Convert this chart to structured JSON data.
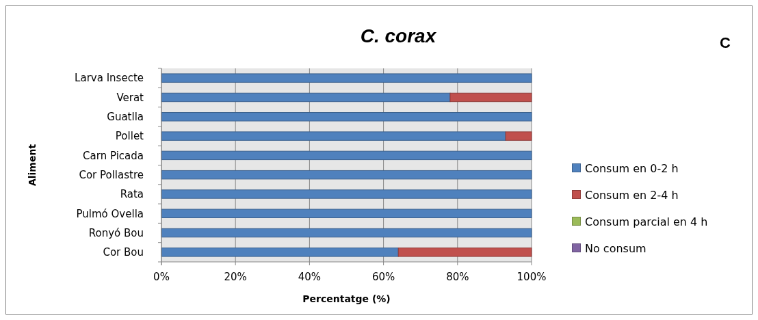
{
  "chart_data": {
    "type": "bar",
    "orientation": "horizontal",
    "stacked": true,
    "title": "C. corax",
    "xlabel": "Percentatge (%)",
    "ylabel": "Aliment",
    "annotations": [
      "C"
    ],
    "categories": [
      "Larva Insecte",
      "Verat",
      "Guatlla",
      "Pollet",
      "Carn Picada",
      "Cor Pollastre",
      "Rata",
      "Pulmó Ovella",
      "Ronyó Bou",
      "Cor Bou"
    ],
    "series": [
      {
        "name": "Consum en 0-2 h",
        "color": "#4f81bd",
        "values": [
          100,
          78,
          100,
          93,
          100,
          100,
          100,
          100,
          100,
          64
        ]
      },
      {
        "name": "Consum en 2-4 h",
        "color": "#c0504d",
        "values": [
          0,
          22,
          0,
          7,
          0,
          0,
          0,
          0,
          0,
          36
        ]
      },
      {
        "name": "Consum parcial en 4 h",
        "color": "#9bbb59",
        "values": [
          0,
          0,
          0,
          0,
          0,
          0,
          0,
          0,
          0,
          0
        ]
      },
      {
        "name": "No consum",
        "color": "#8064a2",
        "values": [
          0,
          0,
          0,
          0,
          0,
          0,
          0,
          0,
          0,
          0
        ]
      }
    ],
    "xlim": [
      0,
      100
    ],
    "xticks": [
      {
        "value": 0,
        "label": "0%"
      },
      {
        "value": 20,
        "label": "20%"
      },
      {
        "value": 40,
        "label": "40%"
      },
      {
        "value": 60,
        "label": "60%"
      },
      {
        "value": 80,
        "label": "80%"
      },
      {
        "value": 100,
        "label": "100%"
      }
    ],
    "grid": "x",
    "legend": "right"
  }
}
